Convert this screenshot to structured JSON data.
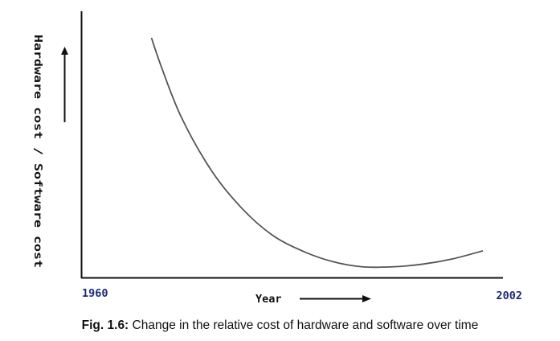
{
  "chart_data": {
    "type": "line",
    "x_start_label": "1960",
    "x_end_label": "2002",
    "xlabel": "Year",
    "ylabel": "Hardware cost / Software cost",
    "x_range": [
      1960,
      2002
    ],
    "y_range": [
      0,
      1
    ],
    "grid": false,
    "legend": "none",
    "series": [
      {
        "x": [
          1967,
          1968,
          1970,
          1973,
          1976,
          1979,
          1982,
          1985,
          1988,
          1991,
          1994,
          1997,
          2000
        ],
        "y": [
          0.9,
          0.79,
          0.6,
          0.4,
          0.26,
          0.16,
          0.1,
          0.06,
          0.04,
          0.04,
          0.05,
          0.07,
          0.1
        ]
      }
    ],
    "colors": {
      "axis": "#111111",
      "curve": "#555555",
      "tick_label": "#1e2a78"
    }
  },
  "caption": {
    "label": "Fig. 1.6:",
    "text": "Change in the relative cost of hardware and software over time"
  }
}
